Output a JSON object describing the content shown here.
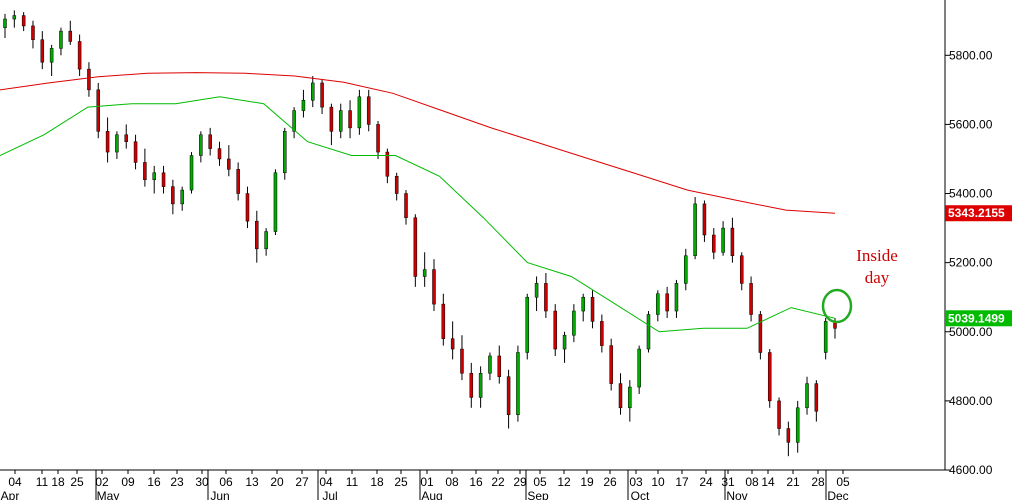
{
  "chart_data": {
    "type": "candlestick",
    "title": "",
    "xlabel": "",
    "ylabel": "",
    "ylim": [
      4600,
      5960
    ],
    "y_ticks": [
      4600,
      4800,
      5000,
      5200,
      5400,
      5600,
      5800
    ],
    "y_tick_labels": [
      "4600.00",
      "4800.00",
      "5000.00",
      "5200.00",
      "5400.00",
      "5600.00",
      "5800.00"
    ],
    "x_day_labels": [
      "04",
      "11",
      "18",
      "25",
      "02",
      "09",
      "16",
      "23",
      "30",
      "06",
      "13",
      "20",
      "27",
      "04",
      "11",
      "18",
      "25",
      "01",
      "08",
      "16",
      "22",
      "29",
      "05",
      "12",
      "19",
      "26",
      "03",
      "10",
      "17",
      "24",
      "31",
      "08",
      "14",
      "21",
      "28",
      "05"
    ],
    "x_month_labels": [
      "Apr",
      "May",
      "Jun",
      "Jul",
      "Aug",
      "Sep",
      "Oct",
      "Nov",
      "Dec"
    ],
    "moving_averages": [
      {
        "color": "#dd0000",
        "last_value_label": "5343.2155",
        "values": [
          5700,
          5720,
          5738,
          5748,
          5750,
          5748,
          5740,
          5722,
          5690,
          5640,
          5590,
          5545,
          5500,
          5455,
          5410,
          5380,
          5352,
          5343
        ]
      },
      {
        "color": "#00bb00",
        "last_value_label": "5039.1499",
        "values": [
          5510,
          5570,
          5650,
          5660,
          5660,
          5680,
          5660,
          5550,
          5510,
          5510,
          5450,
          5330,
          5200,
          5160,
          5080,
          5000,
          5010,
          5010,
          5070,
          5039
        ]
      }
    ],
    "candles": [
      [
        5880,
        5920,
        5850,
        5905
      ],
      [
        5905,
        5930,
        5880,
        5915
      ],
      [
        5915,
        5925,
        5870,
        5885
      ],
      [
        5885,
        5900,
        5820,
        5845
      ],
      [
        5845,
        5870,
        5760,
        5780
      ],
      [
        5780,
        5830,
        5740,
        5820
      ],
      [
        5820,
        5880,
        5800,
        5870
      ],
      [
        5870,
        5900,
        5830,
        5840
      ],
      [
        5840,
        5860,
        5740,
        5760
      ],
      [
        5760,
        5780,
        5680,
        5700
      ],
      [
        5700,
        5720,
        5560,
        5580
      ],
      [
        5580,
        5620,
        5490,
        5520
      ],
      [
        5520,
        5580,
        5500,
        5570
      ],
      [
        5570,
        5600,
        5530,
        5550
      ],
      [
        5550,
        5570,
        5470,
        5490
      ],
      [
        5490,
        5530,
        5420,
        5440
      ],
      [
        5440,
        5480,
        5400,
        5460
      ],
      [
        5460,
        5480,
        5400,
        5420
      ],
      [
        5420,
        5440,
        5340,
        5370
      ],
      [
        5370,
        5420,
        5350,
        5410
      ],
      [
        5410,
        5520,
        5400,
        5510
      ],
      [
        5510,
        5580,
        5490,
        5570
      ],
      [
        5570,
        5590,
        5510,
        5530
      ],
      [
        5530,
        5550,
        5480,
        5500
      ],
      [
        5500,
        5540,
        5450,
        5470
      ],
      [
        5470,
        5490,
        5380,
        5400
      ],
      [
        5400,
        5420,
        5300,
        5320
      ],
      [
        5320,
        5350,
        5200,
        5240
      ],
      [
        5240,
        5300,
        5220,
        5290
      ],
      [
        5290,
        5470,
        5280,
        5460
      ],
      [
        5460,
        5590,
        5440,
        5580
      ],
      [
        5580,
        5650,
        5560,
        5640
      ],
      [
        5640,
        5700,
        5620,
        5670
      ],
      [
        5670,
        5740,
        5650,
        5720
      ],
      [
        5720,
        5730,
        5630,
        5650
      ],
      [
        5650,
        5660,
        5540,
        5580
      ],
      [
        5580,
        5660,
        5560,
        5640
      ],
      [
        5640,
        5670,
        5560,
        5590
      ],
      [
        5590,
        5700,
        5570,
        5680
      ],
      [
        5680,
        5700,
        5580,
        5600
      ],
      [
        5600,
        5610,
        5500,
        5520
      ],
      [
        5520,
        5530,
        5430,
        5450
      ],
      [
        5450,
        5460,
        5380,
        5400
      ],
      [
        5400,
        5410,
        5310,
        5330
      ],
      [
        5330,
        5340,
        5130,
        5160
      ],
      [
        5160,
        5230,
        5130,
        5180
      ],
      [
        5180,
        5210,
        5060,
        5080
      ],
      [
        5080,
        5110,
        4960,
        4980
      ],
      [
        4980,
        5030,
        4920,
        4950
      ],
      [
        4950,
        4990,
        4860,
        4880
      ],
      [
        4880,
        4910,
        4780,
        4810
      ],
      [
        4810,
        4900,
        4780,
        4880
      ],
      [
        4880,
        4940,
        4860,
        4930
      ],
      [
        4930,
        4960,
        4850,
        4870
      ],
      [
        4870,
        4890,
        4720,
        4760
      ],
      [
        4760,
        4960,
        4740,
        4940
      ],
      [
        4940,
        5110,
        4920,
        5100
      ],
      [
        5100,
        5160,
        5060,
        5140
      ],
      [
        5140,
        5170,
        5040,
        5060
      ],
      [
        5060,
        5080,
        4930,
        4950
      ],
      [
        4950,
        5000,
        4910,
        4990
      ],
      [
        4990,
        5080,
        4970,
        5060
      ],
      [
        5060,
        5110,
        5030,
        5100
      ],
      [
        5100,
        5120,
        5010,
        5030
      ],
      [
        5030,
        5050,
        4940,
        4960
      ],
      [
        4960,
        4980,
        4830,
        4850
      ],
      [
        4850,
        4880,
        4760,
        4780
      ],
      [
        4780,
        4860,
        4740,
        4840
      ],
      [
        4840,
        4960,
        4820,
        4950
      ],
      [
        4950,
        5060,
        4940,
        5050
      ],
      [
        5050,
        5120,
        5030,
        5110
      ],
      [
        5110,
        5130,
        5040,
        5060
      ],
      [
        5060,
        5150,
        5040,
        5140
      ],
      [
        5140,
        5240,
        5120,
        5220
      ],
      [
        5220,
        5390,
        5210,
        5370
      ],
      [
        5370,
        5380,
        5260,
        5280
      ],
      [
        5280,
        5300,
        5210,
        5230
      ],
      [
        5230,
        5320,
        5220,
        5300
      ],
      [
        5300,
        5330,
        5200,
        5220
      ],
      [
        5220,
        5230,
        5120,
        5140
      ],
      [
        5140,
        5160,
        5030,
        5050
      ],
      [
        5050,
        5060,
        4920,
        4940
      ],
      [
        4940,
        4950,
        4780,
        4800
      ],
      [
        4800,
        4810,
        4700,
        4720
      ],
      [
        4720,
        4740,
        4640,
        4680
      ],
      [
        4680,
        4800,
        4650,
        4780
      ],
      [
        4780,
        4870,
        4760,
        4850
      ],
      [
        4850,
        4860,
        4740,
        4770
      ],
      [
        4940,
        5040,
        4920,
        5030
      ],
      [
        5030,
        5040,
        4980,
        5010
      ]
    ],
    "annotation": "Inside\nday",
    "annotation_lines": [
      "Inside",
      "day"
    ]
  }
}
